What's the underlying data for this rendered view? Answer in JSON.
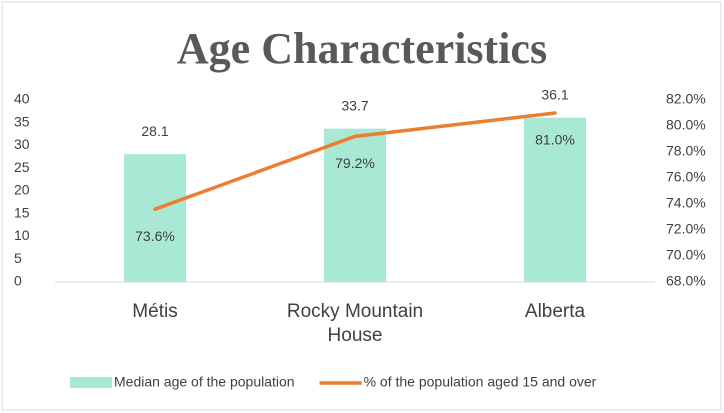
{
  "chart_data": {
    "type": "bar_line",
    "title": "Age Characteristics",
    "categories": [
      "Métis",
      "Rocky Mountain House",
      "Alberta"
    ],
    "series": [
      {
        "name": "Median age of the population",
        "type": "bar",
        "color": "#a9e8d4",
        "values": [
          28.1,
          33.7,
          36.1
        ]
      },
      {
        "name": "% of the population aged 15 and over",
        "type": "line",
        "axis": "y2",
        "color": "#ed7d31",
        "values": [
          73.6,
          79.2,
          81.0
        ],
        "value_labels": [
          "73.6%",
          "79.2%",
          "81.0%"
        ]
      }
    ],
    "ylim": [
      0,
      40
    ],
    "yticks": [
      0,
      5,
      10,
      15,
      20,
      25,
      30,
      35,
      40
    ],
    "y2lim": [
      68,
      82
    ],
    "y2ticks": [
      {
        "value": 68,
        "label": "68.0%"
      },
      {
        "value": 70,
        "label": "70.0%"
      },
      {
        "value": 72,
        "label": "72.0%"
      },
      {
        "value": 74,
        "label": "74.0%"
      },
      {
        "value": 76,
        "label": "76.0%"
      },
      {
        "value": 78,
        "label": "78.0%"
      },
      {
        "value": 80,
        "label": "80.0%"
      },
      {
        "value": 82,
        "label": "82.0%"
      }
    ],
    "grid": false,
    "legend": "bottom"
  }
}
